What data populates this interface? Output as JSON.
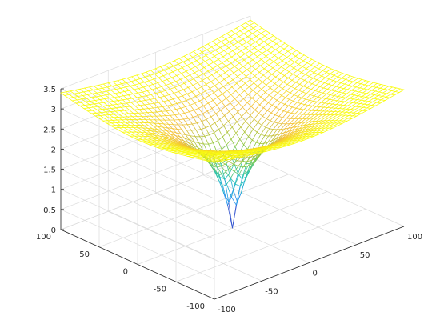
{
  "chart_data": {
    "type": "surface-mesh",
    "title": "",
    "xlabel": "",
    "ylabel": "",
    "zlabel": "",
    "xlim": [
      -100,
      100
    ],
    "ylim": [
      -100,
      100
    ],
    "zlim": [
      0,
      3.5
    ],
    "x_ticks": [
      -100,
      -50,
      0,
      50,
      100
    ],
    "y_ticks": [
      -100,
      -50,
      0,
      50,
      100
    ],
    "z_ticks": [
      0,
      0.5,
      1,
      1.5,
      2,
      2.5,
      3,
      3.5
    ],
    "x_tick_labels": [
      "-100",
      "-50",
      "0",
      "50",
      "100"
    ],
    "y_tick_labels": [
      "-100",
      "-50",
      "0",
      "50",
      "100"
    ],
    "z_tick_labels": [
      "0",
      "0.5",
      "1",
      "1.5",
      "2",
      "2.5",
      "3",
      "3.5"
    ],
    "grid": true,
    "colormap": "parula",
    "colormap_stops": [
      "#3e26a8",
      "#2e87f7",
      "#19c1c1",
      "#8cc93f",
      "#f3be3b",
      "#f9fb0e"
    ],
    "mesh_resolution": 41,
    "surface_samples": [
      {
        "x": 0,
        "y": 0,
        "z": 0
      },
      {
        "x": 5,
        "y": 0,
        "z": 0.72
      },
      {
        "x": 10,
        "y": 0,
        "z": 1.41
      },
      {
        "x": 25,
        "y": 0,
        "z": 2.04
      },
      {
        "x": 50,
        "y": 0,
        "z": 2.41
      },
      {
        "x": 100,
        "y": 0,
        "z": 2.82
      },
      {
        "x": 100,
        "y": 100,
        "z": 3.45
      }
    ]
  }
}
